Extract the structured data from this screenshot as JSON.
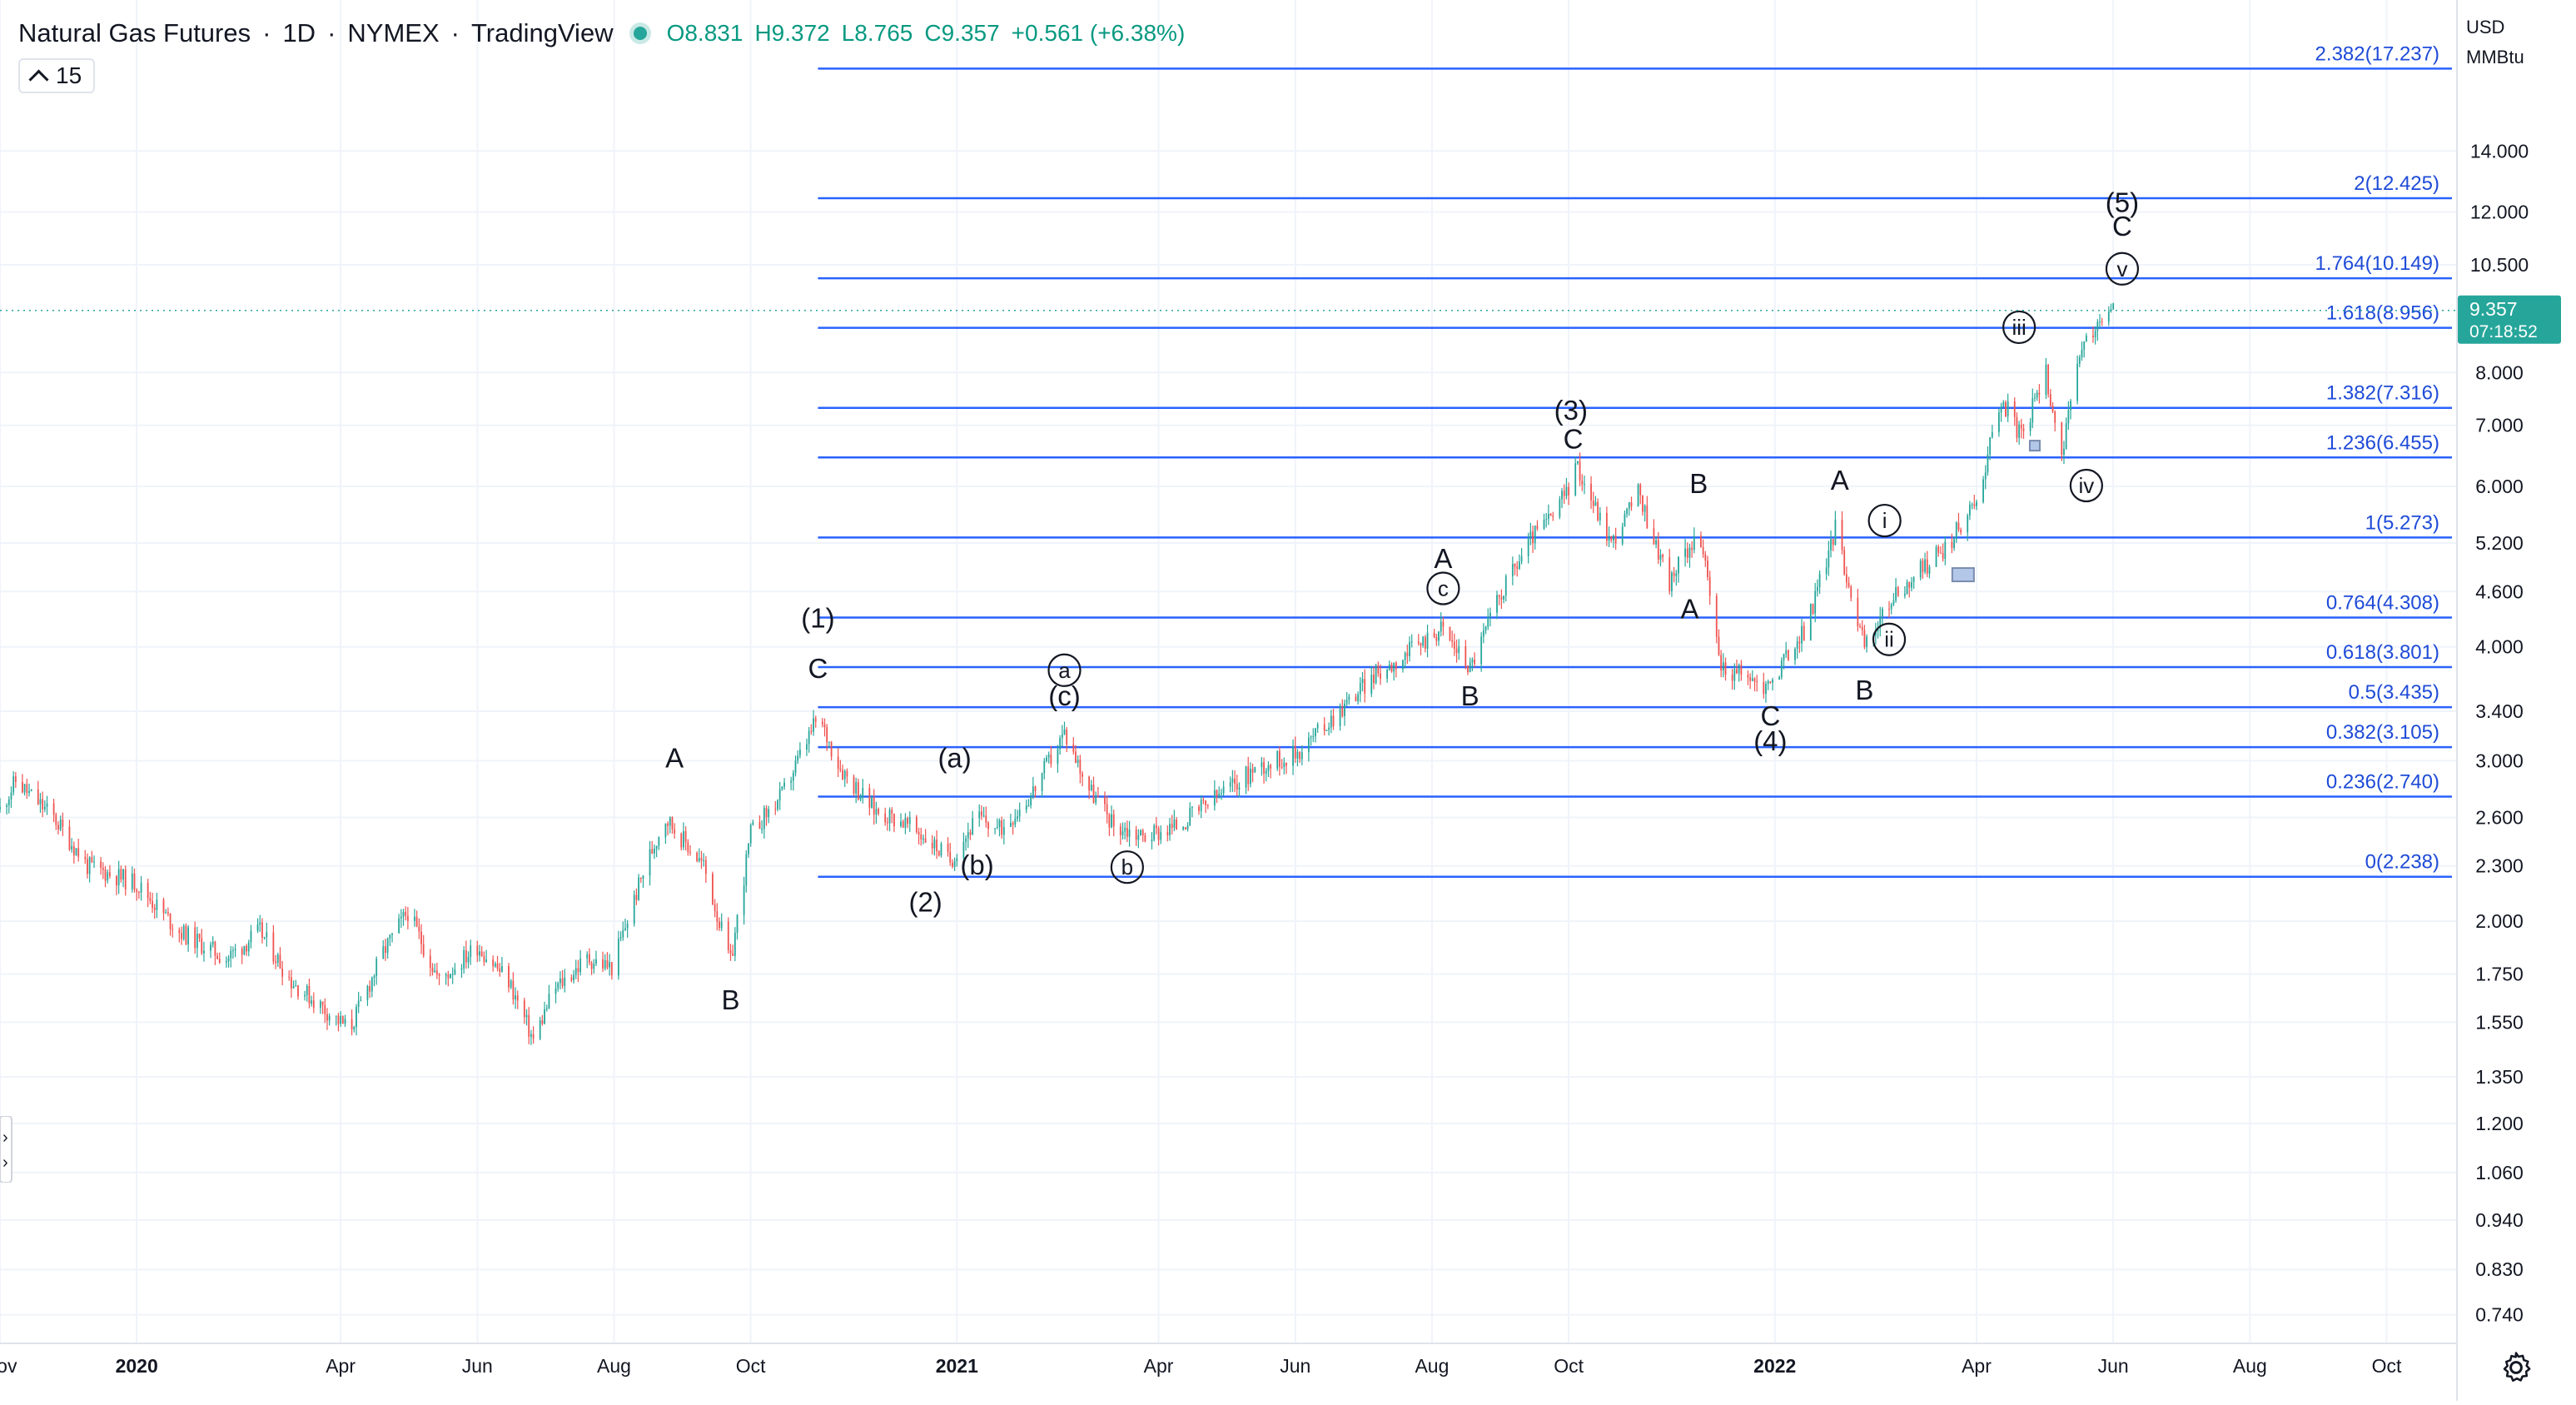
{
  "header": {
    "symbol": "Natural Gas Futures",
    "interval": "1D",
    "exchange": "NYMEX",
    "source": "TradingView",
    "open": "O8.831",
    "high": "H9.372",
    "low": "L8.765",
    "close": "C9.357",
    "change": "+0.561 (+6.38%)",
    "interval_box": "15"
  },
  "price_scale": {
    "currency": "USD",
    "unit": "MMBtu",
    "last_price": "9.357",
    "countdown": "07:18:52"
  },
  "colors": {
    "up": "#26a69a",
    "down": "#ef5350",
    "fib_line": "#2962ff",
    "fib_text": "#1e4bd8",
    "grid": "#f0f3fa"
  },
  "chart_data": {
    "type": "candlestick",
    "y_scale": "log",
    "ylim": [
      0.69,
      20.5
    ],
    "x_range": [
      "2019-11-01",
      "2022-11-01"
    ],
    "y_ticks": [
      0.74,
      0.83,
      0.94,
      1.06,
      1.2,
      1.35,
      1.55,
      1.75,
      2.0,
      2.3,
      2.6,
      3.0,
      3.4,
      4.0,
      4.6,
      5.2,
      6.0,
      7.0,
      8.0,
      10.5,
      12.0,
      14.0
    ],
    "y_tick_labels": [
      "0.740",
      "0.830",
      "0.940",
      "1.060",
      "1.200",
      "1.350",
      "1.550",
      "1.750",
      "2.000",
      "2.300",
      "2.600",
      "3.000",
      "3.400",
      "4.000",
      "4.600",
      "5.200",
      "6.000",
      "7.000",
      "8.000",
      "10.500",
      "12.000",
      "14.000"
    ],
    "x_ticks": [
      {
        "date": "2019-11-01",
        "label": "Nov",
        "major": false
      },
      {
        "date": "2020-01-01",
        "label": "2020",
        "major": true
      },
      {
        "date": "2020-04-01",
        "label": "Apr",
        "major": false
      },
      {
        "date": "2020-06-01",
        "label": "Jun",
        "major": false
      },
      {
        "date": "2020-08-01",
        "label": "Aug",
        "major": false
      },
      {
        "date": "2020-10-01",
        "label": "Oct",
        "major": false
      },
      {
        "date": "2021-01-01",
        "label": "2021",
        "major": true
      },
      {
        "date": "2021-04-01",
        "label": "Apr",
        "major": false
      },
      {
        "date": "2021-06-01",
        "label": "Jun",
        "major": false
      },
      {
        "date": "2021-08-01",
        "label": "Aug",
        "major": false
      },
      {
        "date": "2021-10-01",
        "label": "Oct",
        "major": false
      },
      {
        "date": "2022-01-01",
        "label": "2022",
        "major": true
      },
      {
        "date": "2022-04-01",
        "label": "Apr",
        "major": false
      },
      {
        "date": "2022-06-01",
        "label": "Jun",
        "major": false
      },
      {
        "date": "2022-08-01",
        "label": "Aug",
        "major": false
      },
      {
        "date": "2022-10-01",
        "label": "Oct",
        "major": false
      }
    ],
    "price_path": [
      [
        "2019-11-01",
        2.65
      ],
      [
        "2019-11-08",
        2.85
      ],
      [
        "2019-11-25",
        2.6
      ],
      [
        "2019-12-10",
        2.3
      ],
      [
        "2020-01-01",
        2.2
      ],
      [
        "2020-01-20",
        1.95
      ],
      [
        "2020-02-10",
        1.82
      ],
      [
        "2020-02-25",
        1.95
      ],
      [
        "2020-03-10",
        1.72
      ],
      [
        "2020-03-25",
        1.6
      ],
      [
        "2020-04-05",
        1.52
      ],
      [
        "2020-04-20",
        1.85
      ],
      [
        "2020-05-01",
        2.05
      ],
      [
        "2020-05-15",
        1.72
      ],
      [
        "2020-06-01",
        1.88
      ],
      [
        "2020-06-15",
        1.72
      ],
      [
        "2020-06-26",
        1.48
      ],
      [
        "2020-07-05",
        1.68
      ],
      [
        "2020-07-20",
        1.82
      ],
      [
        "2020-07-31",
        1.78
      ],
      [
        "2020-08-15",
        2.3
      ],
      [
        "2020-08-24",
        2.6
      ],
      [
        "2020-09-10",
        2.3
      ],
      [
        "2020-09-22",
        1.8
      ],
      [
        "2020-10-01",
        2.5
      ],
      [
        "2020-10-15",
        2.75
      ],
      [
        "2020-10-31",
        3.35
      ],
      [
        "2020-11-10",
        2.95
      ],
      [
        "2020-11-25",
        2.65
      ],
      [
        "2020-12-07",
        2.58
      ],
      [
        "2020-12-20",
        2.45
      ],
      [
        "2020-12-29",
        2.33
      ],
      [
        "2021-01-10",
        2.6
      ],
      [
        "2021-01-20",
        2.52
      ],
      [
        "2021-02-03",
        2.75
      ],
      [
        "2021-02-18",
        3.22
      ],
      [
        "2021-03-01",
        2.8
      ],
      [
        "2021-03-12",
        2.55
      ],
      [
        "2021-03-25",
        2.48
      ],
      [
        "2021-04-10",
        2.55
      ],
      [
        "2021-04-28",
        2.75
      ],
      [
        "2021-05-15",
        2.95
      ],
      [
        "2021-06-01",
        3.05
      ],
      [
        "2021-06-15",
        3.3
      ],
      [
        "2021-07-05",
        3.7
      ],
      [
        "2021-07-25",
        4.0
      ],
      [
        "2021-08-05",
        4.2
      ],
      [
        "2021-08-18",
        3.8
      ],
      [
        "2021-09-01",
        4.6
      ],
      [
        "2021-09-15",
        5.3
      ],
      [
        "2021-09-25",
        5.6
      ],
      [
        "2021-10-05",
        6.3
      ],
      [
        "2021-10-20",
        5.2
      ],
      [
        "2021-11-01",
        5.9
      ],
      [
        "2021-11-15",
        4.7
      ],
      [
        "2021-11-28",
        5.4
      ],
      [
        "2021-12-08",
        3.8
      ],
      [
        "2021-12-20",
        3.7
      ],
      [
        "2021-12-28",
        3.6
      ],
      [
        "2022-01-15",
        4.2
      ],
      [
        "2022-01-28",
        5.4
      ],
      [
        "2022-02-10",
        4.0
      ],
      [
        "2022-02-22",
        4.5
      ],
      [
        "2022-03-05",
        4.8
      ],
      [
        "2022-03-20",
        5.2
      ],
      [
        "2022-04-01",
        5.8
      ],
      [
        "2022-04-12",
        7.5
      ],
      [
        "2022-04-21",
        6.8
      ],
      [
        "2022-05-02",
        8.0
      ],
      [
        "2022-05-09",
        6.5
      ],
      [
        "2022-05-18",
        8.5
      ],
      [
        "2022-05-28",
        9.2
      ],
      [
        "2022-06-01",
        9.357
      ]
    ],
    "fib_levels": [
      {
        "value": 17.237,
        "label": "2.382(17.237)"
      },
      {
        "value": 12.425,
        "label": "2(12.425)"
      },
      {
        "value": 10.149,
        "label": "1.764(10.149)"
      },
      {
        "value": 8.956,
        "label": "1.618(8.956)"
      },
      {
        "value": 7.316,
        "label": "1.382(7.316)"
      },
      {
        "value": 6.455,
        "label": "1.236(6.455)"
      },
      {
        "value": 5.273,
        "label": "1(5.273)"
      },
      {
        "value": 4.308,
        "label": "0.764(4.308)"
      },
      {
        "value": 3.801,
        "label": "0.618(3.801)"
      },
      {
        "value": 3.435,
        "label": "0.5(3.435)"
      },
      {
        "value": 3.105,
        "label": "0.382(3.105)"
      },
      {
        "value": 2.74,
        "label": "0.236(2.740)"
      },
      {
        "value": 2.238,
        "label": "0(2.238)"
      }
    ],
    "fib_start_date": "2020-10-31",
    "wave_labels": [
      {
        "text": "A",
        "date": "2020-08-28",
        "price": 2.95,
        "circled": false
      },
      {
        "text": "B",
        "date": "2020-09-22",
        "price": 1.6,
        "circled": false
      },
      {
        "text": "(1)",
        "date": "2020-10-31",
        "price": 4.2,
        "circled": false
      },
      {
        "text": "C",
        "date": "2020-10-31",
        "price": 3.7,
        "circled": false
      },
      {
        "text": "(a)",
        "date": "2020-12-31",
        "price": 2.95,
        "circled": false
      },
      {
        "text": "(b)",
        "date": "2021-01-10",
        "price": 2.25,
        "circled": false
      },
      {
        "text": "(2)",
        "date": "2020-12-18",
        "price": 2.05,
        "circled": false
      },
      {
        "text": "a",
        "date": "2021-02-18",
        "price": 3.7,
        "circled": true
      },
      {
        "text": "(c)",
        "date": "2021-02-18",
        "price": 3.45,
        "circled": false
      },
      {
        "text": "b",
        "date": "2021-03-18",
        "price": 2.25,
        "circled": true
      },
      {
        "text": "A",
        "date": "2021-08-06",
        "price": 4.88,
        "circled": false
      },
      {
        "text": "c",
        "date": "2021-08-06",
        "price": 4.55,
        "circled": true
      },
      {
        "text": "B",
        "date": "2021-08-18",
        "price": 3.45,
        "circled": false
      },
      {
        "text": "(3)",
        "date": "2021-10-02",
        "price": 7.1,
        "circled": false
      },
      {
        "text": "C",
        "date": "2021-10-03",
        "price": 6.6,
        "circled": false
      },
      {
        "text": "B",
        "date": "2021-11-28",
        "price": 5.9,
        "circled": false
      },
      {
        "text": "A",
        "date": "2021-11-24",
        "price": 4.3,
        "circled": false
      },
      {
        "text": "C",
        "date": "2021-12-30",
        "price": 3.28,
        "circled": false
      },
      {
        "text": "(4)",
        "date": "2021-12-30",
        "price": 3.08,
        "circled": false
      },
      {
        "text": "A",
        "date": "2022-01-30",
        "price": 5.95,
        "circled": false
      },
      {
        "text": "i",
        "date": "2022-02-19",
        "price": 5.4,
        "circled": true
      },
      {
        "text": "ii",
        "date": "2022-02-21",
        "price": 4.0,
        "circled": true
      },
      {
        "text": "B",
        "date": "2022-02-10",
        "price": 3.5,
        "circled": false
      },
      {
        "text": "iii",
        "date": "2022-04-20",
        "price": 8.8,
        "circled": true
      },
      {
        "text": "iv",
        "date": "2022-05-20",
        "price": 5.9,
        "circled": true
      },
      {
        "text": "(5)",
        "date": "2022-06-05",
        "price": 12.0,
        "circled": false
      },
      {
        "text": "C",
        "date": "2022-06-05",
        "price": 11.3,
        "circled": false
      },
      {
        "text": "v",
        "date": "2022-06-05",
        "price": 10.2,
        "circled": true
      }
    ]
  }
}
